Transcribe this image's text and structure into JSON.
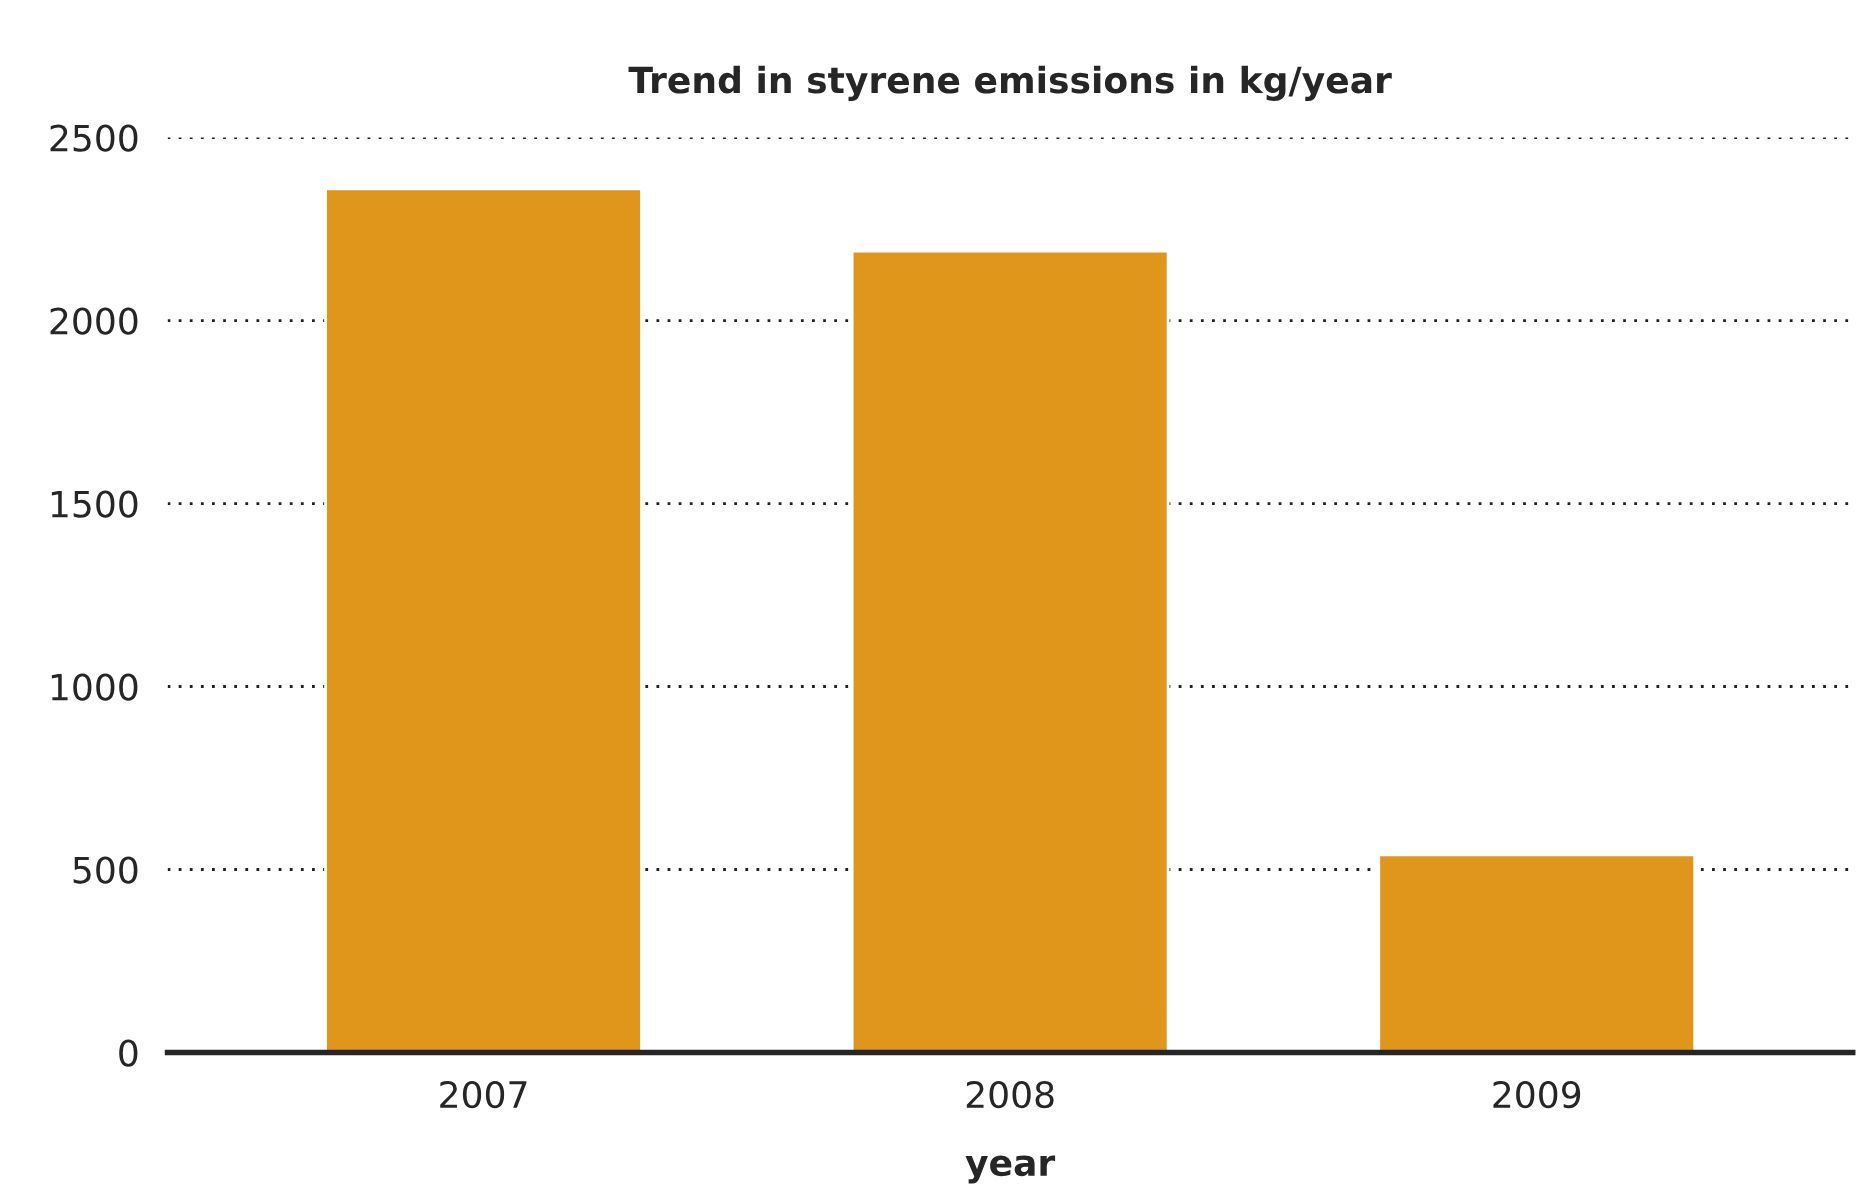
{
  "chart_data": {
    "type": "bar",
    "title": "Trend in styrene emissions in kg/year",
    "xlabel": "year",
    "categories": [
      "2007",
      "2008",
      "2009"
    ],
    "values": [
      2360,
      2190,
      540
    ],
    "color": "#e0961b",
    "ylim": [
      0,
      2500
    ],
    "yticks": [
      0,
      500,
      1000,
      1500,
      2000,
      2500
    ],
    "grid": "y"
  }
}
